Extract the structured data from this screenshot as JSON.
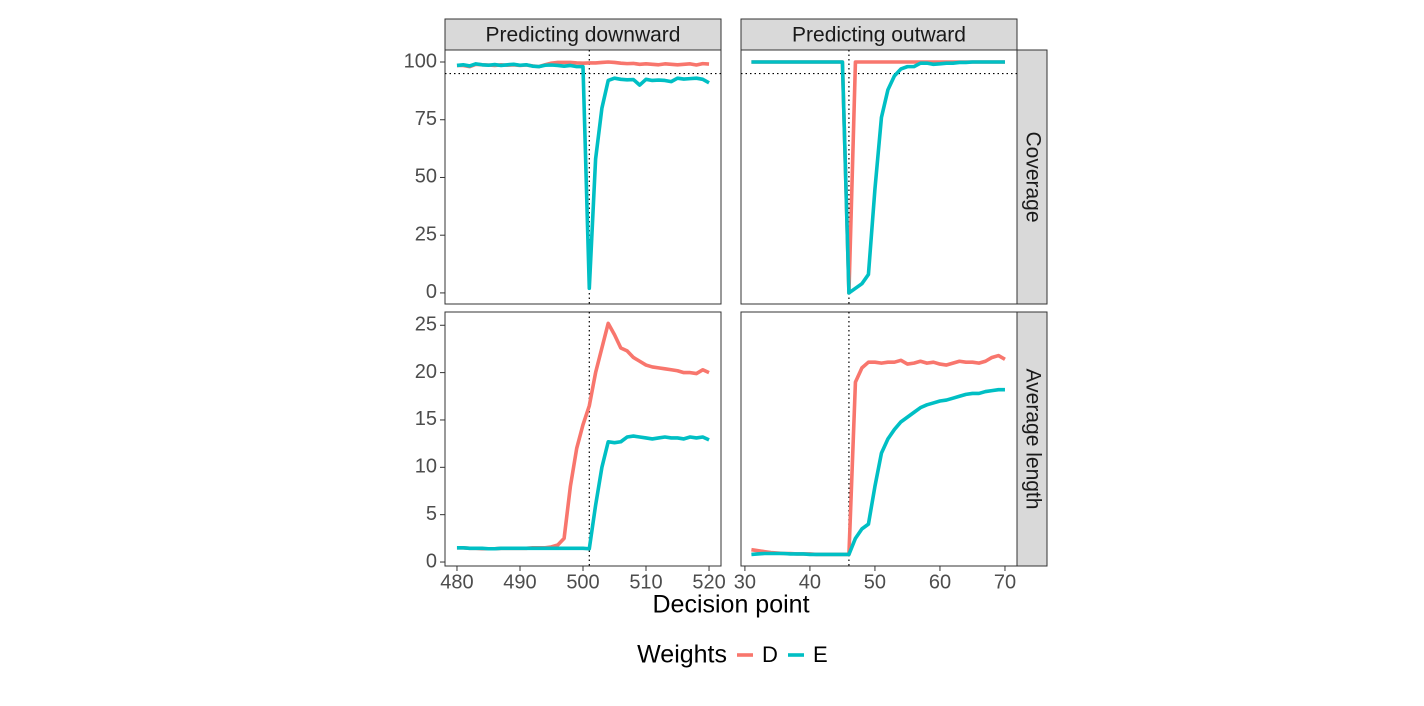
{
  "chart_data": {
    "type": "line",
    "xlabel": "Decision point",
    "legend_title": "Weights",
    "legend_position": "bottom",
    "series": [
      {
        "name": "D",
        "color": "#f8766d"
      },
      {
        "name": "E",
        "color": "#00bfc4"
      }
    ],
    "columns": [
      {
        "title": "Predicting downward",
        "xlim": [
          478.1,
          521.9
        ],
        "xticks": [
          480,
          490,
          500,
          510,
          520
        ],
        "vline": 501,
        "x": [
          480,
          481,
          482,
          483,
          484,
          485,
          486,
          487,
          488,
          489,
          490,
          491,
          492,
          493,
          494,
          495,
          496,
          497,
          498,
          499,
          500,
          501,
          502,
          503,
          504,
          505,
          506,
          507,
          508,
          509,
          510,
          511,
          512,
          513,
          514,
          515,
          516,
          517,
          518,
          519,
          520
        ]
      },
      {
        "title": "Predicting outward",
        "xlim": [
          29.4,
          71.85
        ],
        "xticks": [
          30,
          40,
          50,
          60,
          70
        ],
        "vline": 46,
        "x": [
          31,
          32,
          33,
          34,
          35,
          36,
          37,
          38,
          39,
          40,
          41,
          42,
          43,
          44,
          45,
          46,
          47,
          48,
          49,
          50,
          51,
          52,
          53,
          54,
          55,
          56,
          57,
          58,
          59,
          60,
          61,
          62,
          63,
          64,
          65,
          66,
          67,
          68,
          69,
          70
        ]
      }
    ],
    "rows": [
      {
        "title": "Coverage",
        "ylim": [
          -4.8,
          105.2
        ],
        "yticks": [
          0,
          25,
          50,
          75,
          100
        ],
        "hline": 95,
        "panels": [
          {
            "series": [
              {
                "values": [
                  98.5,
                  98.5,
                  98,
                  99,
                  98.8,
                  98.7,
                  98.5,
                  98.8,
                  98.6,
                  98.8,
                  98.5,
                  98.7,
                  98.3,
                  98,
                  98.8,
                  99.5,
                  99.8,
                  99.8,
                  99.8,
                  99.6,
                  99.5,
                  99.6,
                  99.6,
                  99.8,
                  100,
                  99.8,
                  99.5,
                  99.3,
                  99.4,
                  99,
                  99.2,
                  99,
                  98.8,
                  99.2,
                  99,
                  98.8,
                  99,
                  99.2,
                  98.7,
                  99.3,
                  99.1
                ]
              },
              {
                "values": [
                  98.5,
                  98.8,
                  98.3,
                  99.2,
                  98.8,
                  98.6,
                  98.9,
                  98.5,
                  98.8,
                  99,
                  98.6,
                  98.8,
                  98.2,
                  98,
                  98.6,
                  98.7,
                  98.5,
                  98.2,
                  98.5,
                  98,
                  98,
                  2,
                  58,
                  80,
                  92,
                  93,
                  92.5,
                  92.3,
                  92.4,
                  90,
                  92.5,
                  92,
                  92.2,
                  92,
                  91.5,
                  93,
                  92.6,
                  92.8,
                  93,
                  92.5,
                  91
                ]
              }
            ]
          },
          {
            "series": [
              {
                "values": [
                  100,
                  100,
                  100,
                  100,
                  100,
                  100,
                  100,
                  100,
                  100,
                  100,
                  100,
                  100,
                  100,
                  100,
                  100,
                  0,
                  100,
                  100,
                  100,
                  100,
                  100,
                  100,
                  100,
                  100,
                  100,
                  100,
                  100,
                  100,
                  100,
                  100,
                  100,
                  100,
                  100,
                  100,
                  100,
                  100,
                  100,
                  100,
                  100,
                  100
                ]
              },
              {
                "values": [
                  100,
                  100,
                  100,
                  100,
                  100,
                  100,
                  100,
                  100,
                  100,
                  100,
                  100,
                  100,
                  100,
                  100,
                  100,
                  0,
                  2,
                  4,
                  8,
                  45,
                  76,
                  88,
                  94,
                  97,
                  98,
                  98,
                  99.5,
                  99.5,
                  99,
                  99.2,
                  99.5,
                  99.5,
                  99.8,
                  99.8,
                  100,
                  100,
                  100,
                  100,
                  100,
                  100
                ]
              }
            ]
          }
        ]
      },
      {
        "title": "Average length",
        "ylim": [
          -0.42,
          26.4
        ],
        "yticks": [
          0,
          5,
          10,
          15,
          20,
          25
        ],
        "panels": [
          {
            "series": [
              {
                "values": [
                  1.5,
                  1.5,
                  1.45,
                  1.45,
                  1.4,
                  1.4,
                  1.4,
                  1.45,
                  1.45,
                  1.45,
                  1.45,
                  1.45,
                  1.5,
                  1.5,
                  1.5,
                  1.6,
                  1.8,
                  2.5,
                  8,
                  12,
                  14.5,
                  16.5,
                  20,
                  22.6,
                  25.2,
                  24,
                  22.6,
                  22.3,
                  21.6,
                  21.2,
                  20.8,
                  20.6,
                  20.5,
                  20.4,
                  20.3,
                  20.2,
                  20,
                  20,
                  19.9,
                  20.3,
                  20
                ]
              },
              {
                "values": [
                  1.5,
                  1.5,
                  1.45,
                  1.45,
                  1.45,
                  1.4,
                  1.4,
                  1.45,
                  1.45,
                  1.45,
                  1.45,
                  1.45,
                  1.45,
                  1.45,
                  1.45,
                  1.45,
                  1.45,
                  1.45,
                  1.45,
                  1.45,
                  1.45,
                  1.4,
                  6,
                  10,
                  12.7,
                  12.6,
                  12.7,
                  13.2,
                  13.3,
                  13.2,
                  13.1,
                  13,
                  13.1,
                  13.2,
                  13.1,
                  13.1,
                  13,
                  13.2,
                  13.1,
                  13.2,
                  12.9
                ]
              }
            ]
          },
          {
            "series": [
              {
                "values": [
                  1.3,
                  1.2,
                  1.1,
                  1,
                  0.95,
                  0.9,
                  0.9,
                  0.85,
                  0.85,
                  0.85,
                  0.8,
                  0.8,
                  0.8,
                  0.8,
                  0.8,
                  0.8,
                  19,
                  20.5,
                  21.1,
                  21.1,
                  21,
                  21.1,
                  21.1,
                  21.3,
                  20.9,
                  21,
                  21.2,
                  21,
                  21.1,
                  20.9,
                  20.8,
                  21,
                  21.2,
                  21.1,
                  21.1,
                  21,
                  21.2,
                  21.6,
                  21.8,
                  21.4
                ]
              },
              {
                "values": [
                  0.8,
                  0.85,
                  0.9,
                  0.9,
                  0.9,
                  0.9,
                  0.85,
                  0.85,
                  0.85,
                  0.8,
                  0.8,
                  0.8,
                  0.8,
                  0.8,
                  0.8,
                  0.8,
                  2.5,
                  3.5,
                  4,
                  8,
                  11.5,
                  13,
                  14,
                  14.8,
                  15.3,
                  15.8,
                  16.3,
                  16.6,
                  16.8,
                  17,
                  17.1,
                  17.3,
                  17.5,
                  17.7,
                  17.8,
                  17.8,
                  18,
                  18.1,
                  18.2,
                  18.2
                ]
              }
            ]
          }
        ]
      }
    ]
  }
}
